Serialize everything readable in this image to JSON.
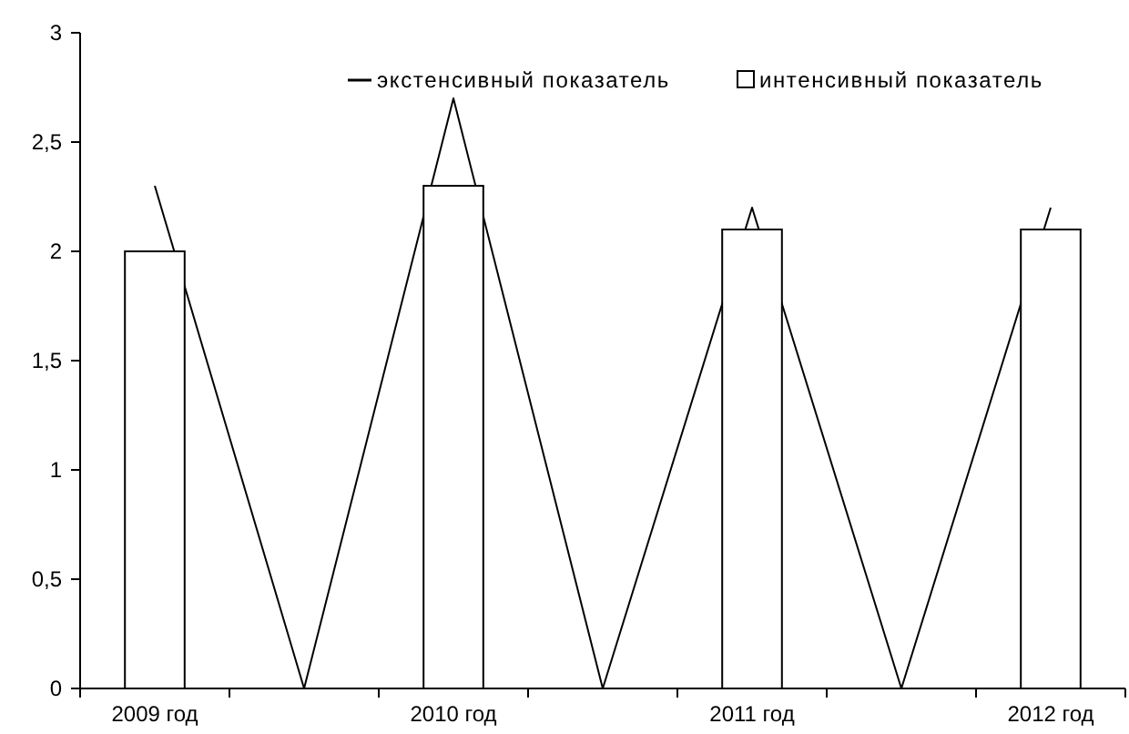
{
  "chart_data": {
    "type": "bar",
    "categories": [
      "2009 год",
      null,
      "2010 год",
      null,
      "2011 год",
      null,
      "2012 год"
    ],
    "series": [
      {
        "name": "экстенсивный показатель",
        "type": "line",
        "color": "#000000",
        "values": [
          2.3,
          0,
          2.7,
          0,
          2.2,
          0,
          2.2
        ]
      },
      {
        "name": "интенсивный показатель",
        "color": "#ffffff",
        "values": [
          2,
          null,
          2.3,
          null,
          2.1,
          null,
          2.1
        ]
      }
    ],
    "ylim": [
      0,
      3
    ],
    "yticks": [
      0,
      {
        "value": 0.5,
        "label": "0,5"
      },
      1,
      {
        "value": 1.5,
        "label": "1,5"
      },
      2,
      {
        "value": 2.5,
        "label": "2,5"
      },
      3
    ],
    "grid": false,
    "legend": "top right",
    "marker": "none"
  }
}
